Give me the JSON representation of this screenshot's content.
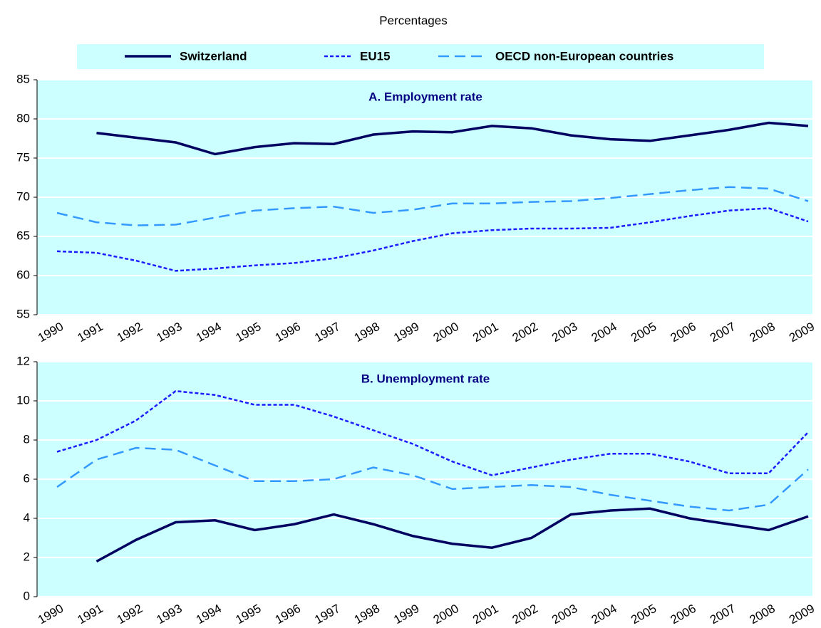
{
  "chart_data": [
    {
      "type": "line",
      "subtitle": "Percentages",
      "title": "A. Employment rate",
      "categories": [
        "1990",
        "1991",
        "1992",
        "1993",
        "1994",
        "1995",
        "1996",
        "1997",
        "1998",
        "1999",
        "2000",
        "2001",
        "2002",
        "2003",
        "2004",
        "2005",
        "2006",
        "2007",
        "2008",
        "2009"
      ],
      "series": [
        {
          "name": "Switzerland",
          "color": "#000060",
          "dash": "solid",
          "values": [
            null,
            78.2,
            77.6,
            77.0,
            75.5,
            76.4,
            76.9,
            76.8,
            78.0,
            78.4,
            78.3,
            79.1,
            78.8,
            77.9,
            77.4,
            77.2,
            77.9,
            78.6,
            79.5,
            79.1
          ]
        },
        {
          "name": "EU15",
          "color": "#1c1cff",
          "dash": "dotted",
          "values": [
            63.1,
            62.9,
            61.9,
            60.6,
            60.9,
            61.3,
            61.6,
            62.2,
            63.2,
            64.4,
            65.4,
            65.8,
            66.0,
            66.0,
            66.1,
            66.8,
            67.6,
            68.3,
            68.6,
            66.9
          ]
        },
        {
          "name": "OECD non-European countries",
          "color": "#3399ff",
          "dash": "dashed",
          "values": [
            68.0,
            66.8,
            66.4,
            66.5,
            67.4,
            68.3,
            68.6,
            68.8,
            68.0,
            68.4,
            69.2,
            69.2,
            69.4,
            69.5,
            69.9,
            70.4,
            70.9,
            71.3,
            71.1,
            69.5
          ]
        }
      ],
      "ylim": [
        55,
        85
      ],
      "yticks": [
        55,
        60,
        65,
        70,
        75,
        80,
        85
      ],
      "grid": true
    },
    {
      "type": "line",
      "title": "B. Unemployment rate",
      "categories": [
        "1990",
        "1991",
        "1992",
        "1993",
        "1994",
        "1995",
        "1996",
        "1997",
        "1998",
        "1999",
        "2000",
        "2001",
        "2002",
        "2003",
        "2004",
        "2005",
        "2006",
        "2007",
        "2008",
        "2009"
      ],
      "series": [
        {
          "color": "#000060",
          "dash": "solid",
          "values": [
            null,
            1.8,
            2.9,
            3.8,
            3.9,
            3.4,
            3.7,
            4.2,
            3.7,
            3.1,
            2.7,
            2.5,
            3.0,
            4.2,
            4.4,
            4.5,
            4.0,
            3.7,
            3.4,
            4.1
          ]
        },
        {
          "color": "#1c1cff",
          "dash": "dotted",
          "values": [
            7.4,
            8.0,
            9.0,
            10.5,
            10.3,
            9.8,
            9.8,
            9.2,
            8.5,
            7.8,
            6.9,
            6.2,
            6.6,
            7.0,
            7.3,
            7.3,
            6.9,
            6.3,
            6.3,
            8.4
          ]
        },
        {
          "color": "#3399ff",
          "dash": "dashed",
          "values": [
            5.6,
            7.0,
            7.6,
            7.5,
            6.7,
            5.9,
            5.9,
            6.0,
            6.6,
            6.2,
            5.5,
            5.6,
            5.7,
            5.6,
            5.2,
            4.9,
            4.6,
            4.4,
            4.7,
            6.5
          ]
        }
      ],
      "ylim": [
        0,
        12
      ],
      "yticks": [
        0,
        2,
        4,
        6,
        8,
        10,
        12
      ],
      "grid": true
    }
  ]
}
